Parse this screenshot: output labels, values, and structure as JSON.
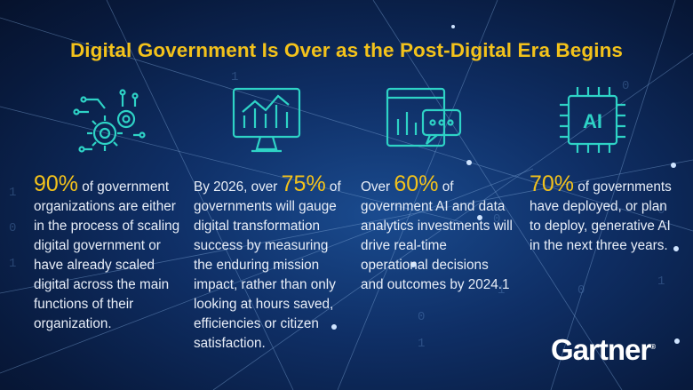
{
  "title": "Digital Government Is Over as the Post-Digital Era Begins",
  "colors": {
    "accent": "#f3c21b",
    "icon": "#2ed3c6",
    "text": "#e8eef8",
    "background": "#0f2f66"
  },
  "stats": [
    {
      "icon": "gears-circuit-icon",
      "lead": "",
      "value": "90%",
      "rest": " of government organizations are either in the process of scaling digital government or have already scaled digital across the main functions of their organization."
    },
    {
      "icon": "monitor-chart-icon",
      "lead": "By 2026, over ",
      "value": "75%",
      "rest": " of governments will gauge digital transformation success by measuring the enduring mission impact, rather than only looking at hours saved, efficiencies or citizen satisfaction."
    },
    {
      "icon": "dashboard-chat-icon",
      "lead": "Over ",
      "value": "60%",
      "rest": " of government AI and data analytics investments will drive real-time operational decisions and outcomes by 2024.1"
    },
    {
      "icon": "ai-chip-icon",
      "lead": "",
      "value": "70%",
      "rest": " of governments have deployed, or plan to deploy, generative AI in the next three years."
    }
  ],
  "logo": {
    "text": "Gartner",
    "mark": "®"
  }
}
